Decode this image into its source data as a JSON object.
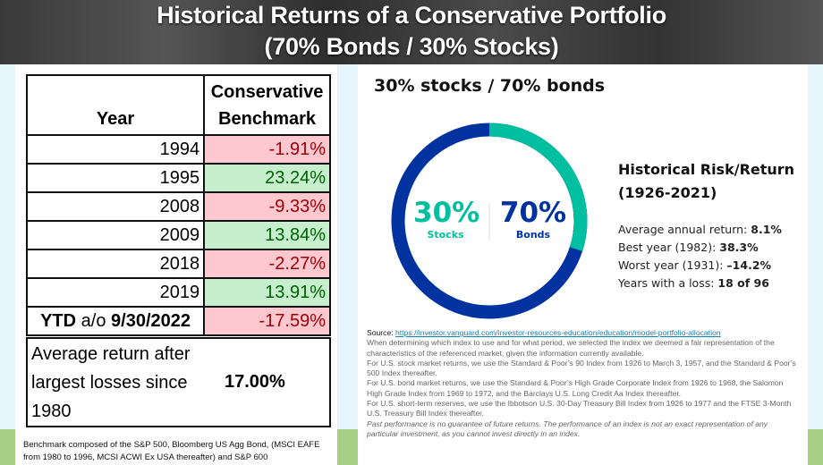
{
  "title": {
    "line1": "Historical Returns of a Conservative Portfolio",
    "line2": "(70% Bonds / 30% Stocks)"
  },
  "table": {
    "headers": [
      "Year",
      "Conservative Benchmark"
    ],
    "rows": [
      {
        "year": "1994",
        "value": "-1.91%",
        "tone": "neg"
      },
      {
        "year": "1995",
        "value": "23.24%",
        "tone": "pos"
      },
      {
        "year": "2008",
        "value": "-9.33%",
        "tone": "neg"
      },
      {
        "year": "2009",
        "value": "13.84%",
        "tone": "pos"
      },
      {
        "year": "2018",
        "value": "-2.27%",
        "tone": "neg"
      },
      {
        "year": "2019",
        "value": "13.91%",
        "tone": "pos"
      }
    ],
    "ytd": {
      "label_a": "YTD",
      "label_b": "a/o",
      "label_c": "9/30/2022",
      "value": "-17.59%"
    }
  },
  "average": {
    "label": "Average return after largest losses since 1980",
    "value": "17.00%"
  },
  "footnote": "Benchmark composed of  the S&P 500, Bloomberg US Agg Bond, (MSCI EAFE from 1980 to 1996, MCSI ACWI Ex USA thereafter) and S&P 600",
  "allocation": {
    "heading": "30% stocks / 70% bonds",
    "stocks_pct": 30,
    "bonds_pct": 70,
    "stocks_label": "30%",
    "stocks_name": "Stocks",
    "bonds_label": "70%",
    "bonds_name": "Bonds",
    "stocks_color": "#00bfa0",
    "bonds_color": "#0033a0"
  },
  "risk": {
    "heading_1": "Historical Risk/Return",
    "heading_2": "(1926-2021)",
    "stats": [
      {
        "label": "Average annual return: ",
        "value": "8.1%"
      },
      {
        "label": "Best year (1982): ",
        "value": "38.3%"
      },
      {
        "label": "Worst year (1931): ",
        "value": "–14.2%"
      },
      {
        "label": "Years with a loss: ",
        "value": "18 of 96"
      }
    ]
  },
  "source": {
    "label": "Source: ",
    "url": "https://investor.vanguard.com/investor-resources-education/education/model-portfolio-allocation",
    "paragraphs": [
      "When determining which index to use and for what period, we selected the index we deemed a fair representation of the characteristics of the referenced market, given the information currently available.",
      "For U.S. stock market returns, we use the Standard & Poor’s 90 Index from 1926 to March 3, 1957, and the Standard & Poor’s 500 Index thereafter.",
      "For U.S. bond market returns, we use the Standard & Poor’s High Grade Corporate Index from 1926 to 1968, the Salomon High Grade Index from 1969 to 1972, and the Barclays U.S. Long Credit Aa Index thereafter.",
      "For U.S. short-term reserves, we use the Ibbotson U.S. 30-Day Treasury Bill Index from 1926 to 1977 and the FTSE 3-Month U.S. Treasury Bill Index thereafter."
    ],
    "disclaimer": "Past performance is no guarantee of future returns. The performance of an index is not an exact representation of any particular investment, as you cannot invest directly in an index."
  }
}
